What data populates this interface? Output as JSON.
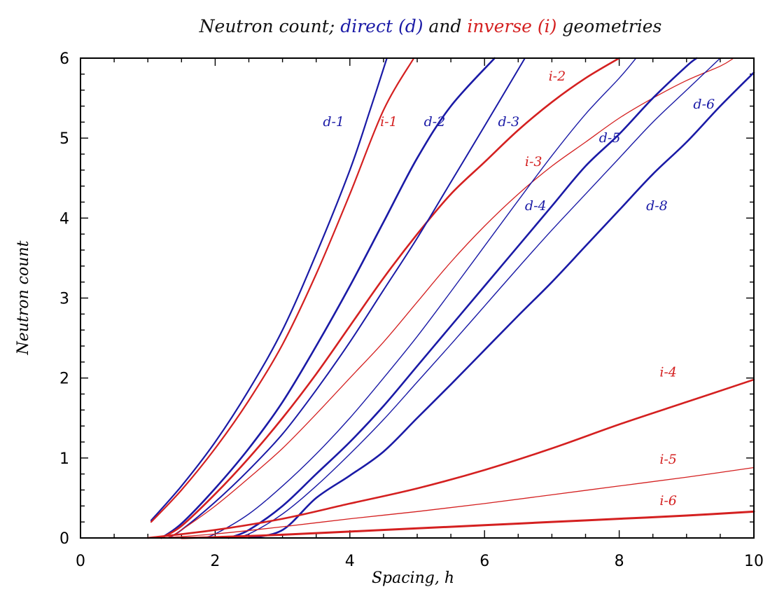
{
  "chart_data": {
    "type": "line",
    "title_parts": [
      {
        "text": "Neutron count; ",
        "color": "#111111"
      },
      {
        "text": "direct (d)",
        "color": "#1a1aa6"
      },
      {
        "text": " and ",
        "color": "#111111"
      },
      {
        "text": "inverse (i)",
        "color": "#d42020"
      },
      {
        "text": " geometries",
        "color": "#111111"
      }
    ],
    "xlabel": "Spacing, h",
    "ylabel": "Neutron count",
    "xlim": [
      0,
      10
    ],
    "ylim": [
      0,
      6
    ],
    "xticks": [
      0,
      2,
      4,
      6,
      8,
      10
    ],
    "yticks": [
      0,
      1,
      2,
      3,
      4,
      5,
      6
    ],
    "x_minor_step": 0.5,
    "y_minor_step": 0.2,
    "colors": {
      "direct": "#1a1aa6",
      "inverse": "#d42020"
    },
    "series": [
      {
        "name": "d-1",
        "color": "#1a1aa6",
        "width": 2.2,
        "points": [
          [
            1.05,
            0.22
          ],
          [
            1.5,
            0.65
          ],
          [
            2.0,
            1.2
          ],
          [
            2.5,
            1.85
          ],
          [
            3.0,
            2.6
          ],
          [
            3.5,
            3.55
          ],
          [
            4.0,
            4.6
          ],
          [
            4.3,
            5.35
          ],
          [
            4.55,
            6.0
          ]
        ],
        "label": {
          "text": "d-1",
          "x": 3.6,
          "y": 5.15
        }
      },
      {
        "name": "i-1",
        "color": "#d42020",
        "width": 2.2,
        "points": [
          [
            1.05,
            0.2
          ],
          [
            1.5,
            0.6
          ],
          [
            2.0,
            1.12
          ],
          [
            2.5,
            1.72
          ],
          [
            3.0,
            2.42
          ],
          [
            3.5,
            3.3
          ],
          [
            4.0,
            4.3
          ],
          [
            4.5,
            5.35
          ],
          [
            4.95,
            6.0
          ]
        ],
        "label": {
          "text": "i-1",
          "x": 4.45,
          "y": 5.15
        }
      },
      {
        "name": "d-2",
        "color": "#1a1aa6",
        "width": 2.6,
        "points": [
          [
            1.2,
            0.0
          ],
          [
            1.5,
            0.18
          ],
          [
            2.0,
            0.62
          ],
          [
            2.5,
            1.12
          ],
          [
            3.0,
            1.7
          ],
          [
            3.5,
            2.4
          ],
          [
            4.0,
            3.15
          ],
          [
            4.5,
            3.95
          ],
          [
            5.0,
            4.75
          ],
          [
            5.5,
            5.4
          ],
          [
            6.15,
            6.0
          ]
        ],
        "label": {
          "text": "d-2",
          "x": 5.1,
          "y": 5.15
        }
      },
      {
        "name": "i-2",
        "color": "#d42020",
        "width": 2.6,
        "points": [
          [
            1.2,
            0.0
          ],
          [
            1.5,
            0.15
          ],
          [
            2.0,
            0.55
          ],
          [
            2.5,
            1.0
          ],
          [
            3.0,
            1.5
          ],
          [
            3.5,
            2.05
          ],
          [
            4.0,
            2.65
          ],
          [
            4.5,
            3.25
          ],
          [
            5.0,
            3.8
          ],
          [
            5.5,
            4.3
          ],
          [
            6.0,
            4.7
          ],
          [
            6.5,
            5.1
          ],
          [
            7.0,
            5.45
          ],
          [
            7.5,
            5.75
          ],
          [
            8.0,
            6.0
          ]
        ],
        "label": {
          "text": "i-2",
          "x": 6.95,
          "y": 5.72
        }
      },
      {
        "name": "d-3",
        "color": "#1a1aa6",
        "width": 2.0,
        "points": [
          [
            1.3,
            0.0
          ],
          [
            1.5,
            0.1
          ],
          [
            2.0,
            0.45
          ],
          [
            2.5,
            0.85
          ],
          [
            3.0,
            1.3
          ],
          [
            3.5,
            1.85
          ],
          [
            4.0,
            2.45
          ],
          [
            4.5,
            3.1
          ],
          [
            5.0,
            3.75
          ],
          [
            5.5,
            4.45
          ],
          [
            6.0,
            5.15
          ],
          [
            6.6,
            6.0
          ]
        ],
        "label": {
          "text": "d-3",
          "x": 6.2,
          "y": 5.15
        }
      },
      {
        "name": "i-3",
        "color": "#d42020",
        "width": 1.3,
        "points": [
          [
            1.3,
            0.0
          ],
          [
            1.5,
            0.1
          ],
          [
            2.0,
            0.4
          ],
          [
            2.5,
            0.75
          ],
          [
            3.0,
            1.12
          ],
          [
            3.5,
            1.55
          ],
          [
            4.0,
            2.0
          ],
          [
            4.5,
            2.45
          ],
          [
            5.0,
            2.95
          ],
          [
            5.5,
            3.45
          ],
          [
            6.0,
            3.9
          ],
          [
            6.5,
            4.3
          ],
          [
            7.0,
            4.65
          ],
          [
            7.5,
            4.95
          ],
          [
            8.0,
            5.25
          ],
          [
            8.5,
            5.5
          ],
          [
            9.0,
            5.72
          ],
          [
            9.5,
            5.9
          ],
          [
            9.7,
            6.0
          ]
        ],
        "label": {
          "text": "i-3",
          "x": 6.6,
          "y": 4.65
        }
      },
      {
        "name": "d-4",
        "color": "#1a1aa6",
        "width": 1.4,
        "points": [
          [
            1.8,
            0.0
          ],
          [
            2.0,
            0.05
          ],
          [
            2.5,
            0.3
          ],
          [
            3.0,
            0.65
          ],
          [
            3.5,
            1.05
          ],
          [
            4.0,
            1.5
          ],
          [
            4.5,
            2.0
          ],
          [
            5.0,
            2.52
          ],
          [
            5.5,
            3.08
          ],
          [
            6.0,
            3.65
          ],
          [
            6.5,
            4.22
          ],
          [
            7.0,
            4.78
          ],
          [
            7.5,
            5.3
          ],
          [
            8.0,
            5.75
          ],
          [
            8.25,
            6.0
          ]
        ],
        "label": {
          "text": "d-4",
          "x": 6.6,
          "y": 4.1
        }
      },
      {
        "name": "d-5",
        "color": "#1a1aa6",
        "width": 2.6,
        "points": [
          [
            2.2,
            0.0
          ],
          [
            2.5,
            0.1
          ],
          [
            3.0,
            0.4
          ],
          [
            3.5,
            0.8
          ],
          [
            4.0,
            1.2
          ],
          [
            4.5,
            1.65
          ],
          [
            5.0,
            2.15
          ],
          [
            5.5,
            2.65
          ],
          [
            6.0,
            3.15
          ],
          [
            6.5,
            3.65
          ],
          [
            7.0,
            4.15
          ],
          [
            7.5,
            4.65
          ],
          [
            8.0,
            5.05
          ],
          [
            8.5,
            5.5
          ],
          [
            9.0,
            5.9
          ],
          [
            9.15,
            6.0
          ]
        ],
        "label": {
          "text": "d-5",
          "x": 7.7,
          "y": 4.95
        }
      },
      {
        "name": "d-6",
        "color": "#1a1aa6",
        "width": 1.4,
        "points": [
          [
            2.2,
            0.0
          ],
          [
            2.5,
            0.05
          ],
          [
            3.0,
            0.3
          ],
          [
            3.5,
            0.65
          ],
          [
            4.0,
            1.05
          ],
          [
            4.5,
            1.48
          ],
          [
            5.0,
            1.95
          ],
          [
            5.5,
            2.42
          ],
          [
            6.0,
            2.9
          ],
          [
            6.5,
            3.38
          ],
          [
            7.0,
            3.85
          ],
          [
            7.5,
            4.3
          ],
          [
            8.0,
            4.75
          ],
          [
            8.5,
            5.2
          ],
          [
            9.0,
            5.6
          ],
          [
            9.5,
            6.0
          ]
        ],
        "label": {
          "text": "d-6",
          "x": 9.1,
          "y": 5.37
        }
      },
      {
        "name": "d-8",
        "color": "#1a1aa6",
        "width": 2.6,
        "points": [
          [
            2.5,
            0.0
          ],
          [
            3.0,
            0.1
          ],
          [
            3.5,
            0.5
          ],
          [
            4.0,
            0.78
          ],
          [
            4.5,
            1.08
          ],
          [
            5.0,
            1.5
          ],
          [
            5.5,
            1.92
          ],
          [
            6.0,
            2.35
          ],
          [
            6.5,
            2.78
          ],
          [
            7.0,
            3.2
          ],
          [
            7.5,
            3.65
          ],
          [
            8.0,
            4.1
          ],
          [
            8.5,
            4.55
          ],
          [
            9.0,
            4.95
          ],
          [
            9.5,
            5.4
          ],
          [
            10.0,
            5.82
          ]
        ],
        "label": {
          "text": "d-8",
          "x": 8.4,
          "y": 4.1
        }
      },
      {
        "name": "i-4",
        "color": "#d42020",
        "width": 2.6,
        "points": [
          [
            1.0,
            0.0
          ],
          [
            2.0,
            0.1
          ],
          [
            3.0,
            0.24
          ],
          [
            4.0,
            0.43
          ],
          [
            5.0,
            0.62
          ],
          [
            6.0,
            0.85
          ],
          [
            7.0,
            1.12
          ],
          [
            8.0,
            1.42
          ],
          [
            9.0,
            1.7
          ],
          [
            10.0,
            1.98
          ]
        ],
        "label": {
          "text": "i-4",
          "x": 8.6,
          "y": 2.02
        }
      },
      {
        "name": "i-5",
        "color": "#d42020",
        "width": 1.3,
        "points": [
          [
            1.2,
            0.0
          ],
          [
            2.0,
            0.05
          ],
          [
            3.0,
            0.14
          ],
          [
            4.0,
            0.24
          ],
          [
            5.0,
            0.33
          ],
          [
            6.0,
            0.43
          ],
          [
            7.0,
            0.54
          ],
          [
            8.0,
            0.65
          ],
          [
            9.0,
            0.76
          ],
          [
            10.0,
            0.88
          ]
        ],
        "label": {
          "text": "i-5",
          "x": 8.6,
          "y": 0.93
        }
      },
      {
        "name": "i-6",
        "color": "#d42020",
        "width": 3.0,
        "points": [
          [
            1.5,
            0.0
          ],
          [
            2.0,
            0.01
          ],
          [
            3.0,
            0.04
          ],
          [
            4.0,
            0.08
          ],
          [
            5.0,
            0.12
          ],
          [
            6.0,
            0.16
          ],
          [
            7.0,
            0.2
          ],
          [
            8.0,
            0.24
          ],
          [
            9.0,
            0.28
          ],
          [
            10.0,
            0.33
          ]
        ],
        "label": {
          "text": "i-6",
          "x": 8.6,
          "y": 0.41
        }
      }
    ]
  }
}
